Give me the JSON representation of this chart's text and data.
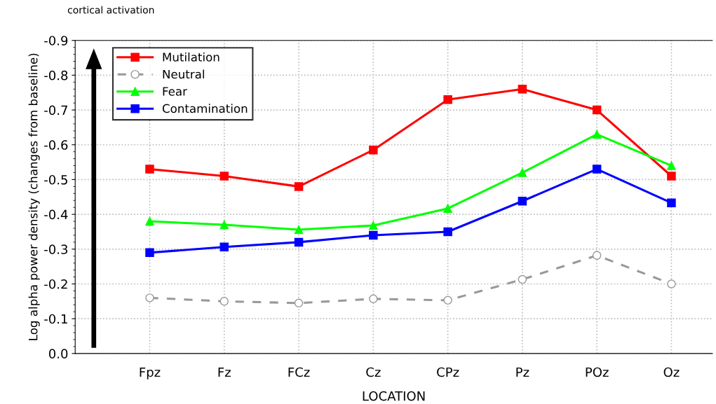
{
  "chart_data": {
    "type": "line",
    "xlabel": "LOCATION",
    "ylabel": "Log alpha power density (changes from baseline)",
    "categories": [
      "Fpz",
      "Fz",
      "FCz",
      "Cz",
      "CPz",
      "Pz",
      "POz",
      "Oz"
    ],
    "series": [
      {
        "name": "Mutilation",
        "color": "#ff0000",
        "marker": "square",
        "line_style": "solid",
        "values": [
          -0.53,
          -0.51,
          -0.48,
          -0.585,
          -0.73,
          -0.76,
          -0.7,
          -0.51
        ]
      },
      {
        "name": "Neutral",
        "color": "#999999",
        "marker": "circle",
        "line_style": "dashed",
        "values": [
          -0.16,
          -0.15,
          -0.145,
          -0.157,
          -0.153,
          -0.213,
          -0.282,
          -0.2
        ]
      },
      {
        "name": "Fear",
        "color": "#00ff00",
        "marker": "triangle",
        "line_style": "solid",
        "values": [
          -0.38,
          -0.37,
          -0.356,
          -0.368,
          -0.417,
          -0.52,
          -0.63,
          -0.54
        ]
      },
      {
        "name": "Contamination",
        "color": "#0000ff",
        "marker": "square",
        "line_style": "solid",
        "values": [
          -0.29,
          -0.306,
          -0.32,
          -0.34,
          -0.35,
          -0.438,
          -0.53,
          -0.433
        ]
      }
    ],
    "ylim": [
      0,
      -0.9
    ],
    "yticks": [
      {
        "value": 0,
        "label": "0.0"
      },
      -0.1,
      -0.2,
      -0.3,
      -0.4,
      -0.5,
      -0.6,
      -0.7,
      -0.8,
      -0.9
    ],
    "grid": true,
    "legend": "top left",
    "annotations": [
      "cortical activation"
    ]
  }
}
